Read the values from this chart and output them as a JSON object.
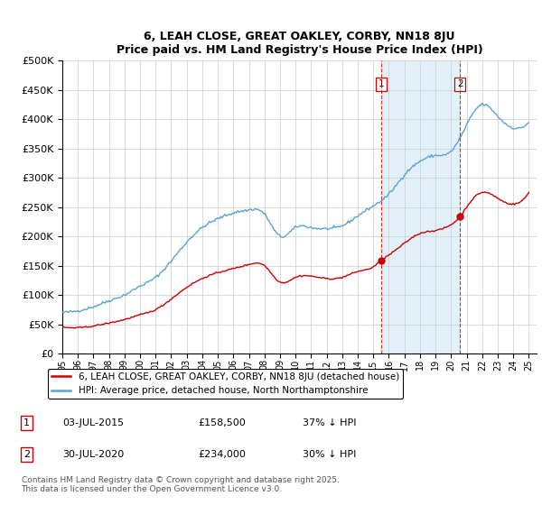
{
  "title1": "6, LEAH CLOSE, GREAT OAKLEY, CORBY, NN18 8JU",
  "title2": "Price paid vs. HM Land Registry's House Price Index (HPI)",
  "legend_label1": "6, LEAH CLOSE, GREAT OAKLEY, CORBY, NN18 8JU (detached house)",
  "legend_label2": "HPI: Average price, detached house, North Northamptonshire",
  "purchase1_date": "03-JUL-2015",
  "purchase1_price": "£158,500",
  "purchase1_note": "37% ↓ HPI",
  "purchase2_date": "30-JUL-2020",
  "purchase2_price": "£234,000",
  "purchase2_note": "30% ↓ HPI",
  "footnote": "Contains HM Land Registry data © Crown copyright and database right 2025.\nThis data is licensed under the Open Government Licence v3.0.",
  "hpi_color": "#5ba3d0",
  "hpi_fill_color": "#d0e8f5",
  "price_color": "#cc0000",
  "vline_color": "#cc0000",
  "background_color": "#ffffff",
  "grid_color": "#cccccc",
  "ylim": [
    0,
    500000
  ],
  "purchase1_year": 2015.5,
  "purchase2_year": 2020.58,
  "purchase1_price_val": 158500,
  "purchase2_price_val": 234000,
  "hpi_years": [
    1995,
    1996,
    1997,
    1998,
    1999,
    2000,
    2001,
    2002,
    2003,
    2004,
    2005,
    2006,
    2007,
    2008,
    2009,
    2010,
    2011,
    2012,
    2013,
    2014,
    2015,
    2016,
    2017,
    2018,
    2019,
    2020,
    2021,
    2022,
    2023,
    2024,
    2025
  ],
  "hpi_values": [
    70000,
    73000,
    80000,
    90000,
    100000,
    115000,
    130000,
    158000,
    190000,
    215000,
    230000,
    240000,
    245000,
    238000,
    200000,
    215000,
    215000,
    213000,
    218000,
    235000,
    252000,
    272000,
    305000,
    328000,
    338000,
    345000,
    390000,
    425000,
    405000,
    385000,
    395000
  ],
  "red_years": [
    1995,
    1996,
    1997,
    1998,
    1999,
    2000,
    2001,
    2002,
    2003,
    2004,
    2005,
    2006,
    2007,
    2008,
    2009,
    2010,
    2011,
    2012,
    2013,
    2014,
    2015,
    2015.5,
    2016,
    2017,
    2018,
    2019,
    2020,
    2020.58,
    2021,
    2022,
    2023,
    2024,
    2025
  ],
  "red_values": [
    45000,
    44000,
    47000,
    52000,
    58000,
    66000,
    75000,
    93000,
    113000,
    128000,
    138000,
    145000,
    152000,
    150000,
    122000,
    130000,
    132000,
    128000,
    130000,
    140000,
    148000,
    158500,
    168000,
    188000,
    205000,
    210000,
    220000,
    234000,
    250000,
    275000,
    265000,
    255000,
    275000
  ]
}
